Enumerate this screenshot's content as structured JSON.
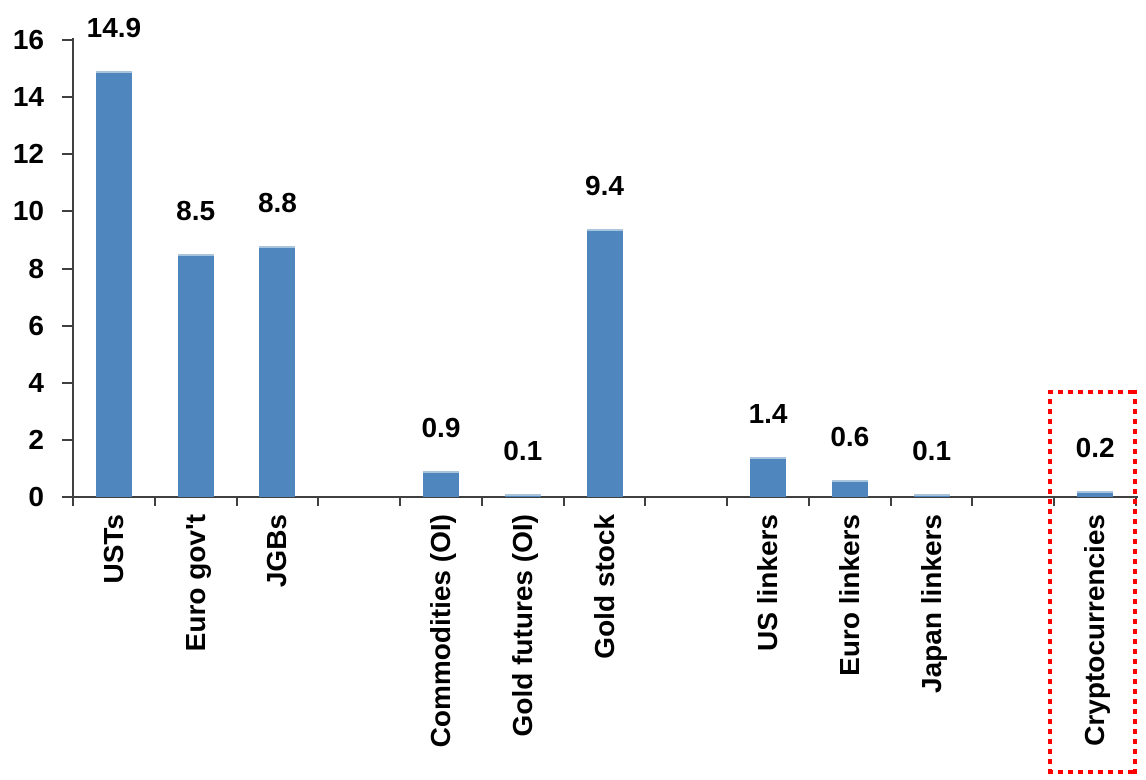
{
  "chart_data": {
    "type": "bar",
    "categories": [
      "USTs",
      "Euro gov't",
      "JGBs",
      "",
      "Commodities (OI)",
      "Gold futures (OI)",
      "Gold stock",
      "",
      "US linkers",
      "Euro linkers",
      "Japan linkers",
      "",
      "Cryptocurrencies"
    ],
    "values": [
      14.9,
      8.5,
      8.8,
      null,
      0.9,
      0.1,
      9.4,
      null,
      1.4,
      0.6,
      0.1,
      null,
      0.2
    ],
    "data_labels": [
      "14.9",
      "8.5",
      "8.8",
      "",
      "0.9",
      "0.1",
      "9.4",
      "",
      "1.4",
      "0.6",
      "0.1",
      "",
      "0.2"
    ],
    "y_ticks": [
      0,
      2,
      4,
      6,
      8,
      10,
      12,
      14,
      16
    ],
    "ylim": [
      0,
      16
    ],
    "grid": "off",
    "legend": "none",
    "bar_color": "#4e86bd",
    "bar_top_edge_color": "#a9c4dd",
    "axis_color": "#404040",
    "label_color": "#000000",
    "highlight": {
      "category": "Cryptocurrencies",
      "style": "red-dotted-box",
      "color": "#ff0000"
    }
  }
}
